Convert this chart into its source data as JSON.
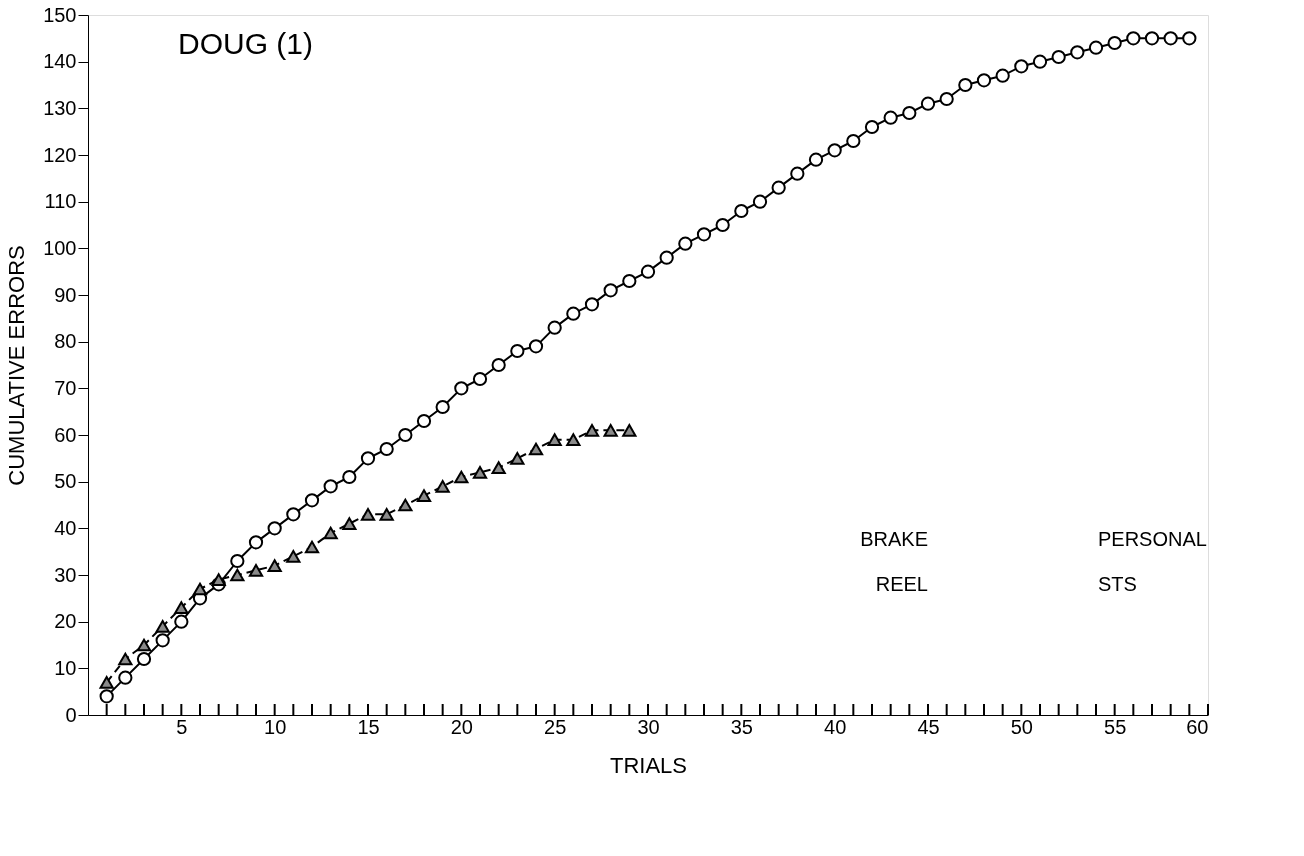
{
  "chart_data": {
    "type": "line",
    "title": "DOUG (1)",
    "xlabel": "TRIALS",
    "ylabel": "CUMULATIVE ERRORS",
    "xlim": [
      0,
      60
    ],
    "ylim": [
      0,
      150
    ],
    "xticks": [
      {
        "value": 1,
        "label": null
      },
      {
        "value": 2,
        "label": null
      },
      {
        "value": 3,
        "label": null
      },
      {
        "value": 4,
        "label": null
      },
      5,
      {
        "value": 6,
        "label": null
      },
      {
        "value": 7,
        "label": null
      },
      {
        "value": 8,
        "label": null
      },
      {
        "value": 9,
        "label": null
      },
      10,
      {
        "value": 11,
        "label": null
      },
      {
        "value": 12,
        "label": null
      },
      {
        "value": 13,
        "label": null
      },
      {
        "value": 14,
        "label": null
      },
      15,
      {
        "value": 16,
        "label": null
      },
      {
        "value": 17,
        "label": null
      },
      {
        "value": 18,
        "label": null
      },
      {
        "value": 19,
        "label": null
      },
      20,
      {
        "value": 21,
        "label": null
      },
      {
        "value": 22,
        "label": null
      },
      {
        "value": 23,
        "label": null
      },
      {
        "value": 24,
        "label": null
      },
      25,
      {
        "value": 26,
        "label": null
      },
      {
        "value": 27,
        "label": null
      },
      {
        "value": 28,
        "label": null
      },
      {
        "value": 29,
        "label": null
      },
      30,
      {
        "value": 31,
        "label": null
      },
      {
        "value": 32,
        "label": null
      },
      {
        "value": 33,
        "label": null
      },
      {
        "value": 34,
        "label": null
      },
      35,
      {
        "value": 36,
        "label": null
      },
      {
        "value": 37,
        "label": null
      },
      {
        "value": 38,
        "label": null
      },
      {
        "value": 39,
        "label": null
      },
      40,
      {
        "value": 41,
        "label": null
      },
      {
        "value": 42,
        "label": null
      },
      {
        "value": 43,
        "label": null
      },
      {
        "value": 44,
        "label": null
      },
      45,
      {
        "value": 46,
        "label": null
      },
      {
        "value": 47,
        "label": null
      },
      {
        "value": 48,
        "label": null
      },
      {
        "value": 49,
        "label": null
      },
      50,
      {
        "value": 51,
        "label": null
      },
      {
        "value": 52,
        "label": null
      },
      {
        "value": 53,
        "label": null
      },
      {
        "value": 54,
        "label": null
      },
      55,
      {
        "value": 56,
        "label": null
      },
      {
        "value": 57,
        "label": null
      },
      {
        "value": 58,
        "label": null
      },
      {
        "value": 59,
        "label": null
      },
      60
    ],
    "yticks": [
      0,
      10,
      20,
      30,
      40,
      50,
      60,
      70,
      80,
      90,
      100,
      110,
      120,
      130,
      140,
      150
    ],
    "grid": false,
    "series": [
      {
        "color": "#000000",
        "marker": "circle",
        "line_style": "solid",
        "x": [
          1,
          2,
          3,
          4,
          5,
          6,
          7,
          8,
          9,
          10,
          11,
          12,
          13,
          14,
          15,
          16,
          17,
          18,
          19,
          20,
          21,
          22,
          23,
          24,
          25,
          26,
          27,
          28,
          29,
          30,
          31,
          32,
          33,
          34,
          35,
          36,
          37,
          38,
          39,
          40,
          41,
          42,
          43,
          44,
          45,
          46,
          47,
          48,
          49,
          50,
          51,
          52,
          53,
          54,
          55,
          56,
          57,
          58,
          59
        ],
        "values": [
          4,
          8,
          12,
          16,
          20,
          25,
          28,
          33,
          37,
          40,
          43,
          46,
          49,
          51,
          55,
          57,
          60,
          63,
          66,
          70,
          72,
          75,
          78,
          79,
          83,
          86,
          88,
          91,
          93,
          95,
          98,
          101,
          103,
          105,
          108,
          110,
          113,
          116,
          119,
          121,
          123,
          126,
          128,
          129,
          131,
          132,
          135,
          136,
          137,
          139,
          140,
          141,
          142,
          143,
          144,
          145,
          145,
          145,
          145
        ]
      },
      {
        "color": "#8a8a8a",
        "marker": "triangle",
        "line_style": "dashed",
        "x": [
          1,
          2,
          3,
          4,
          5,
          6,
          7,
          8,
          9,
          10,
          11,
          12,
          13,
          14,
          15,
          16,
          17,
          18,
          19,
          20,
          21,
          22,
          23,
          24,
          25,
          26,
          27,
          28,
          29
        ],
        "values": [
          7,
          12,
          15,
          19,
          23,
          27,
          29,
          30,
          31,
          32,
          34,
          36,
          39,
          41,
          43,
          43,
          45,
          47,
          49,
          51,
          52,
          53,
          55,
          57,
          59,
          59,
          61,
          61,
          61
        ]
      }
    ],
    "annotations": [
      "BRAKE",
      "REEL",
      "PERSONAL",
      "STS"
    ]
  }
}
